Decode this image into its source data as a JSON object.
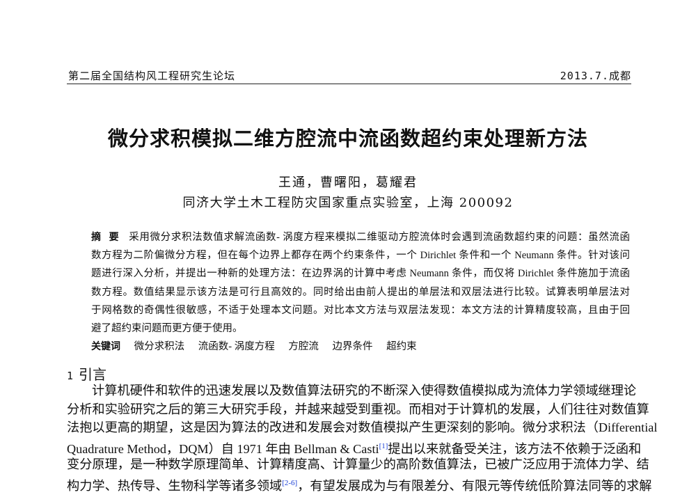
{
  "header": {
    "left": "第二届全国结构风工程研究生论坛",
    "right": "2013.7.成都"
  },
  "title": "微分求积模拟二维方腔流中流函数超约束处理新方法",
  "authors": "王通，曹曙阳，葛耀君",
  "affiliation": "同济大学土木工程防灾国家重点实验室，上海 200092",
  "abstract": {
    "label": "摘  要",
    "lines": [
      "采用微分求积法数值求解流函数- 涡度方程来模拟二维驱动方腔流体时会遇到流函数超约束的问题：虽然流函",
      "数方程为二阶偏微分方程，但在每个边界上都存在两个约束条件，一个 Dirichlet 条件和一个 Neumann 条件。针对该问",
      "题进行深入分析，并提出一种新的处理方法：在边界涡的计算中考虑 Neumann 条件，而仅将 Dirichlet 条件施加于流函",
      "数方程。数值结果显示该方法是可行且高效的。同时给出由前人提出的单层法和双层法进行比较。试算表明单层法对",
      "于网格数的奇偶性很敏感，不适于处理本文问题。对比本文方法与双层法发现：本文方法的计算精度较高，且由于回",
      "避了超约束问题而更方便于使用。"
    ]
  },
  "keywords": {
    "label": "关键词",
    "items": [
      "微分求积法",
      "流函数- 涡度方程",
      "方腔流",
      "边界条件",
      "超约束"
    ]
  },
  "section": {
    "number": "1",
    "title": "引言"
  },
  "body": {
    "lines": [
      "计算机硬件和软件的迅速发展以及数值算法研究的不断深入使得数值模拟成为流体力学领域继理论",
      "分析和实验研究之后的第三大研究手段，并越来越受到重视。而相对于计算机的发展，人们往往对数值算",
      "法抱以更高的期望，这是因为算法的改进和发展会对数值模拟产生更深刻的影响。微分求积法（Differential",
      "Quadrature Method，DQM）自 1971 年由 Bellman & Casti",
      "提出以来就备受关注，该方法不依赖于泛函和",
      "变分原理，是一种数学原理简单、计算精度高、计算量少的高阶数值算法，已被广泛应用于流体力学、结",
      "构力学、热传导、生物科学等诸多领域",
      "，有望发展成为与有限差分、有限元等传统低阶算法同等的求解"
    ],
    "refs": [
      "[1]",
      "[2-6]"
    ]
  },
  "colors": {
    "link": "#1a3fd6",
    "text": "#111111"
  }
}
